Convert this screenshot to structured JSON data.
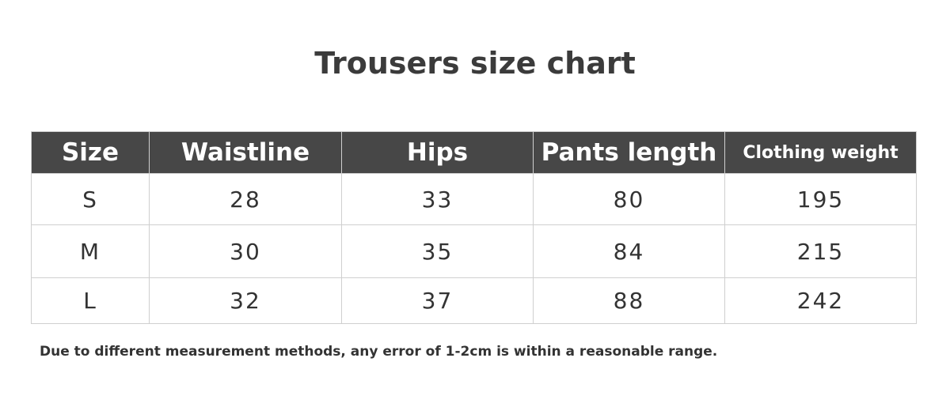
{
  "title": "Trousers size chart",
  "table": {
    "headers": [
      "Size",
      "Waistline",
      "Hips",
      "Pants length",
      "Clothing weight"
    ],
    "rows": [
      [
        "S",
        "28",
        "33",
        "80",
        "195"
      ],
      [
        "M",
        "30",
        "35",
        "84",
        "215"
      ],
      [
        "L",
        "32",
        "37",
        "88",
        "242"
      ]
    ]
  },
  "note": "Due to different measurement methods, any error of 1-2cm is within a reasonable range.",
  "colors": {
    "header_bg": "#474747",
    "border": "#cfcfcf",
    "text": "#333333"
  }
}
